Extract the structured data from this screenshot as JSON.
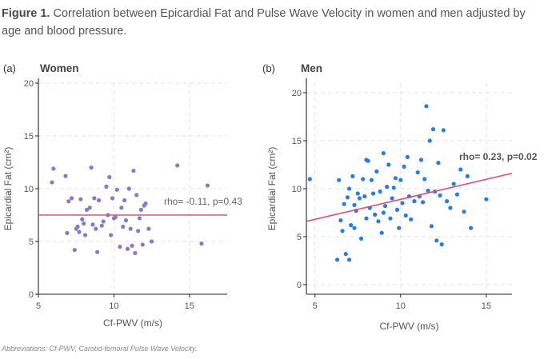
{
  "caption": {
    "label": "Figure 1.",
    "text": " Correlation between Epicardial Fat and Pulse Wave Velocity in women and men adjusted by age and blood pressure."
  },
  "footnote": "Abbreviations: Cf-PWV, Carotid-femoral Pulse Wave Velocity.",
  "chart_data": [
    {
      "type": "scatter",
      "panel_tag": "(a)",
      "title": "Women",
      "xlabel": "Cf-PWV (m/s)",
      "ylabel": "Epicardial Fat (cm²)",
      "xlim": [
        5,
        17.5
      ],
      "ylim": [
        0,
        20
      ],
      "xticks": [
        5,
        10,
        15
      ],
      "yticks": [
        0,
        5,
        10,
        15,
        20
      ],
      "grid": true,
      "point_color": "#8a78c8",
      "line_color": "#e0507a",
      "annotation": "rho= -0.11, p=0.43",
      "trend": {
        "x": [
          5,
          17.5
        ],
        "y": [
          7.5,
          7.5
        ]
      },
      "x": [
        5.9,
        6.0,
        6.8,
        6.9,
        7.0,
        7.2,
        7.4,
        7.5,
        7.6,
        7.7,
        7.8,
        7.9,
        8.0,
        8.1,
        8.2,
        8.4,
        8.5,
        8.6,
        8.7,
        8.8,
        8.9,
        9.0,
        9.2,
        9.3,
        9.5,
        9.6,
        9.7,
        9.8,
        9.9,
        10.0,
        10.1,
        10.2,
        10.4,
        10.5,
        10.6,
        10.7,
        10.8,
        10.9,
        11.0,
        11.1,
        11.2,
        11.3,
        11.4,
        11.5,
        11.6,
        11.7,
        11.8,
        11.9,
        12.0,
        12.1,
        12.3,
        12.5,
        14.2,
        15.8,
        16.2
      ],
      "y": [
        10.6,
        11.9,
        11.2,
        5.8,
        8.8,
        9.1,
        4.2,
        6.2,
        6.4,
        5.9,
        9.0,
        7.1,
        6.7,
        5.6,
        8.0,
        8.2,
        12.0,
        6.6,
        9.1,
        6.2,
        4.0,
        8.9,
        6.5,
        6.9,
        10.2,
        7.5,
        11.1,
        5.6,
        9.1,
        7.2,
        7.3,
        9.9,
        4.5,
        8.2,
        6.4,
        8.9,
        7.0,
        4.3,
        10.0,
        6.2,
        4.6,
        11.7,
        3.9,
        9.4,
        6.0,
        7.2,
        8.0,
        4.7,
        8.4,
        8.6,
        6.2,
        5.0,
        12.2,
        4.8,
        10.3
      ]
    },
    {
      "type": "scatter",
      "panel_tag": "(b)",
      "title": "Men",
      "xlabel": "Cf-PWV (m/s)",
      "ylabel": "Epicardial Fat (cm²)",
      "xlim": [
        4.5,
        16.5
      ],
      "ylim": [
        -1,
        21
      ],
      "xticks": [
        5,
        10,
        15
      ],
      "yticks": [
        0,
        5,
        10,
        15,
        20
      ],
      "grid": true,
      "point_color": "#2a7be4",
      "line_color": "#e0507a",
      "annotation": "rho= 0.23, p=0.02",
      "trend": {
        "x": [
          4.5,
          16.5
        ],
        "y": [
          6.6,
          11.6
        ]
      },
      "x": [
        4.7,
        6.3,
        6.4,
        6.5,
        6.6,
        6.7,
        6.8,
        6.9,
        7.0,
        7.0,
        7.1,
        7.2,
        7.3,
        7.3,
        7.4,
        7.5,
        7.6,
        7.7,
        7.8,
        7.9,
        8.0,
        8.0,
        8.1,
        8.2,
        8.3,
        8.4,
        8.5,
        8.6,
        8.7,
        8.8,
        8.9,
        9.0,
        9.0,
        9.1,
        9.2,
        9.3,
        9.4,
        9.5,
        9.6,
        9.7,
        9.8,
        9.9,
        10.0,
        10.1,
        10.2,
        10.3,
        10.4,
        10.5,
        10.6,
        10.8,
        11.0,
        11.1,
        11.2,
        11.3,
        11.4,
        11.5,
        11.6,
        11.7,
        11.8,
        11.9,
        12.0,
        12.1,
        12.2,
        12.3,
        12.4,
        12.5,
        12.7,
        12.9,
        13.1,
        13.3,
        13.5,
        13.7,
        13.9,
        14.1,
        15.0
      ],
      "y": [
        11.0,
        2.6,
        10.9,
        6.7,
        5.6,
        8.4,
        3.2,
        9.1,
        10.0,
        2.6,
        6.2,
        11.3,
        5.9,
        8.3,
        7.7,
        9.5,
        9.0,
        4.8,
        11.0,
        9.2,
        13.0,
        6.9,
        12.9,
        8.0,
        10.9,
        9.5,
        7.3,
        11.8,
        6.6,
        9.7,
        5.4,
        7.5,
        13.7,
        8.2,
        10.2,
        12.5,
        6.9,
        9.0,
        10.1,
        11.1,
        7.8,
        5.9,
        10.9,
        8.5,
        12.3,
        7.2,
        13.3,
        9.2,
        6.8,
        8.7,
        11.7,
        9.2,
        13.0,
        8.6,
        11.0,
        18.6,
        9.8,
        15.0,
        6.1,
        16.2,
        9.7,
        4.6,
        12.7,
        9.3,
        4.2,
        16.1,
        8.7,
        8.0,
        10.5,
        9.4,
        12.0,
        7.6,
        11.3,
        5.9,
        8.9
      ]
    }
  ]
}
